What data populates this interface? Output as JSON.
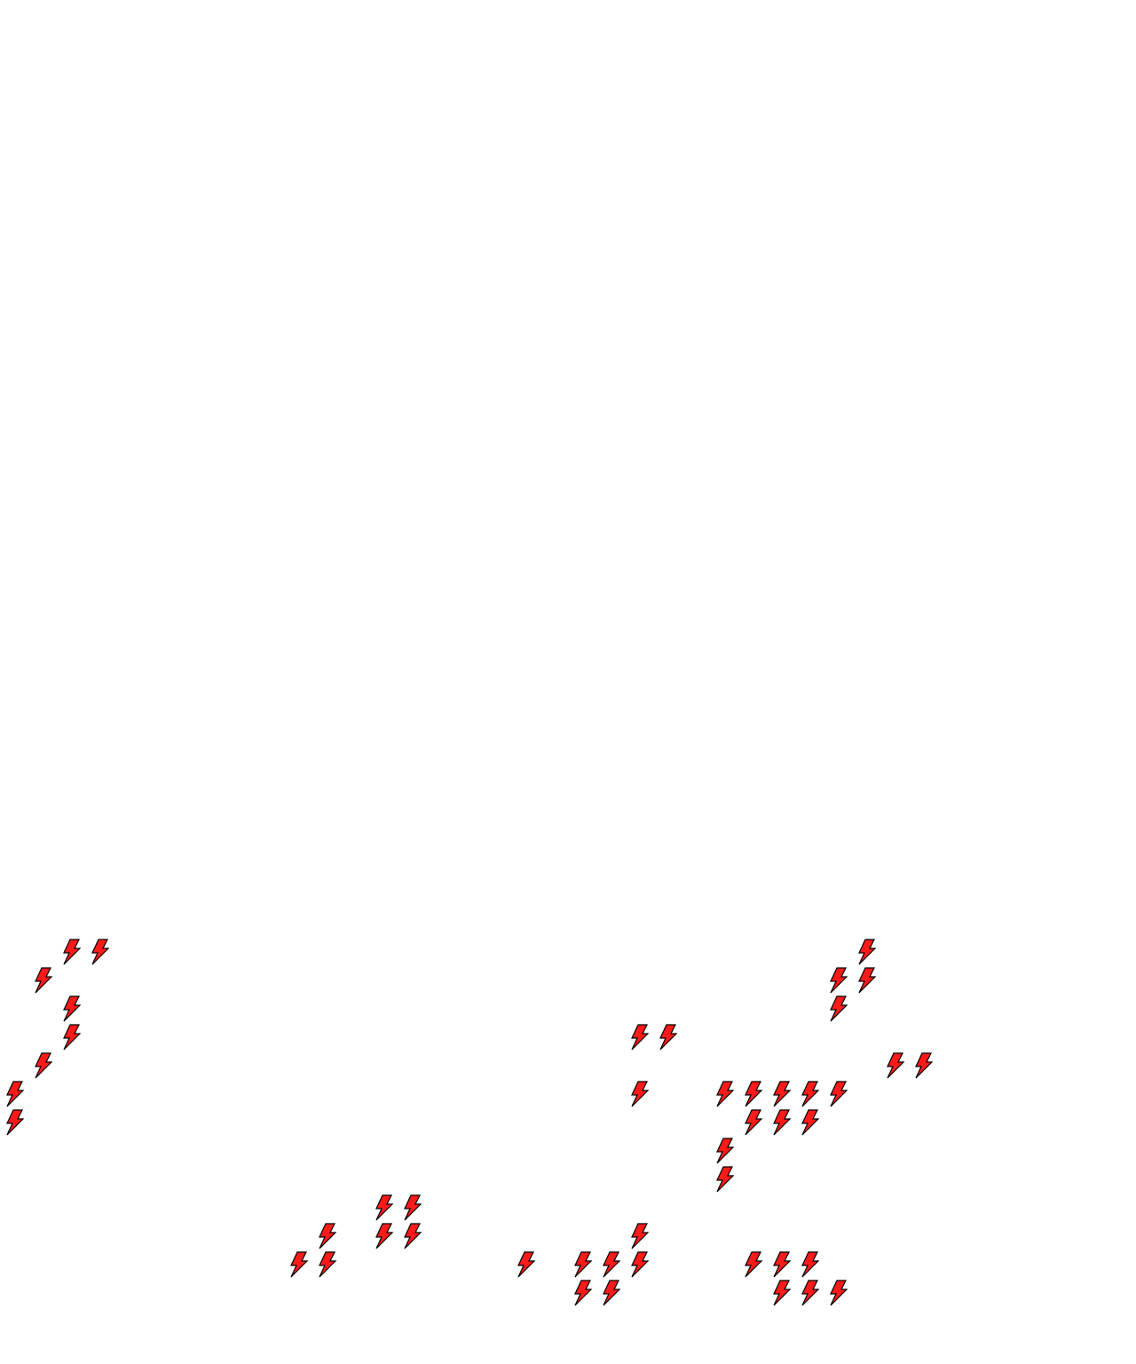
{
  "tile_grid": {
    "columns": 40,
    "rows": 48
  },
  "icon": "lightning-bolt-icon",
  "colors": {
    "background": "#ffffff",
    "bolt_fill": "#ff1a1a",
    "bolt_outline": "#000000"
  },
  "bolts": [
    {
      "row": 33,
      "col": 2
    },
    {
      "row": 33,
      "col": 3
    },
    {
      "row": 33,
      "col": 30
    },
    {
      "row": 34,
      "col": 1
    },
    {
      "row": 34,
      "col": 29
    },
    {
      "row": 34,
      "col": 30
    },
    {
      "row": 35,
      "col": 2
    },
    {
      "row": 35,
      "col": 29
    },
    {
      "row": 36,
      "col": 2
    },
    {
      "row": 36,
      "col": 22
    },
    {
      "row": 36,
      "col": 23
    },
    {
      "row": 37,
      "col": 1
    },
    {
      "row": 37,
      "col": 31
    },
    {
      "row": 37,
      "col": 32
    },
    {
      "row": 38,
      "col": 0
    },
    {
      "row": 38,
      "col": 22
    },
    {
      "row": 38,
      "col": 25
    },
    {
      "row": 38,
      "col": 26
    },
    {
      "row": 38,
      "col": 27
    },
    {
      "row": 38,
      "col": 28
    },
    {
      "row": 38,
      "col": 29
    },
    {
      "row": 39,
      "col": 0
    },
    {
      "row": 39,
      "col": 26
    },
    {
      "row": 39,
      "col": 27
    },
    {
      "row": 39,
      "col": 28
    },
    {
      "row": 40,
      "col": 25
    },
    {
      "row": 41,
      "col": 25
    },
    {
      "row": 42,
      "col": 13
    },
    {
      "row": 42,
      "col": 14
    },
    {
      "row": 43,
      "col": 11
    },
    {
      "row": 43,
      "col": 13
    },
    {
      "row": 43,
      "col": 14
    },
    {
      "row": 43,
      "col": 22
    },
    {
      "row": 44,
      "col": 10
    },
    {
      "row": 44,
      "col": 11
    },
    {
      "row": 44,
      "col": 18
    },
    {
      "row": 44,
      "col": 20
    },
    {
      "row": 44,
      "col": 21
    },
    {
      "row": 44,
      "col": 22
    },
    {
      "row": 44,
      "col": 26
    },
    {
      "row": 44,
      "col": 27
    },
    {
      "row": 44,
      "col": 28
    },
    {
      "row": 45,
      "col": 20
    },
    {
      "row": 45,
      "col": 21
    },
    {
      "row": 45,
      "col": 27
    },
    {
      "row": 45,
      "col": 28
    },
    {
      "row": 45,
      "col": 29
    }
  ]
}
